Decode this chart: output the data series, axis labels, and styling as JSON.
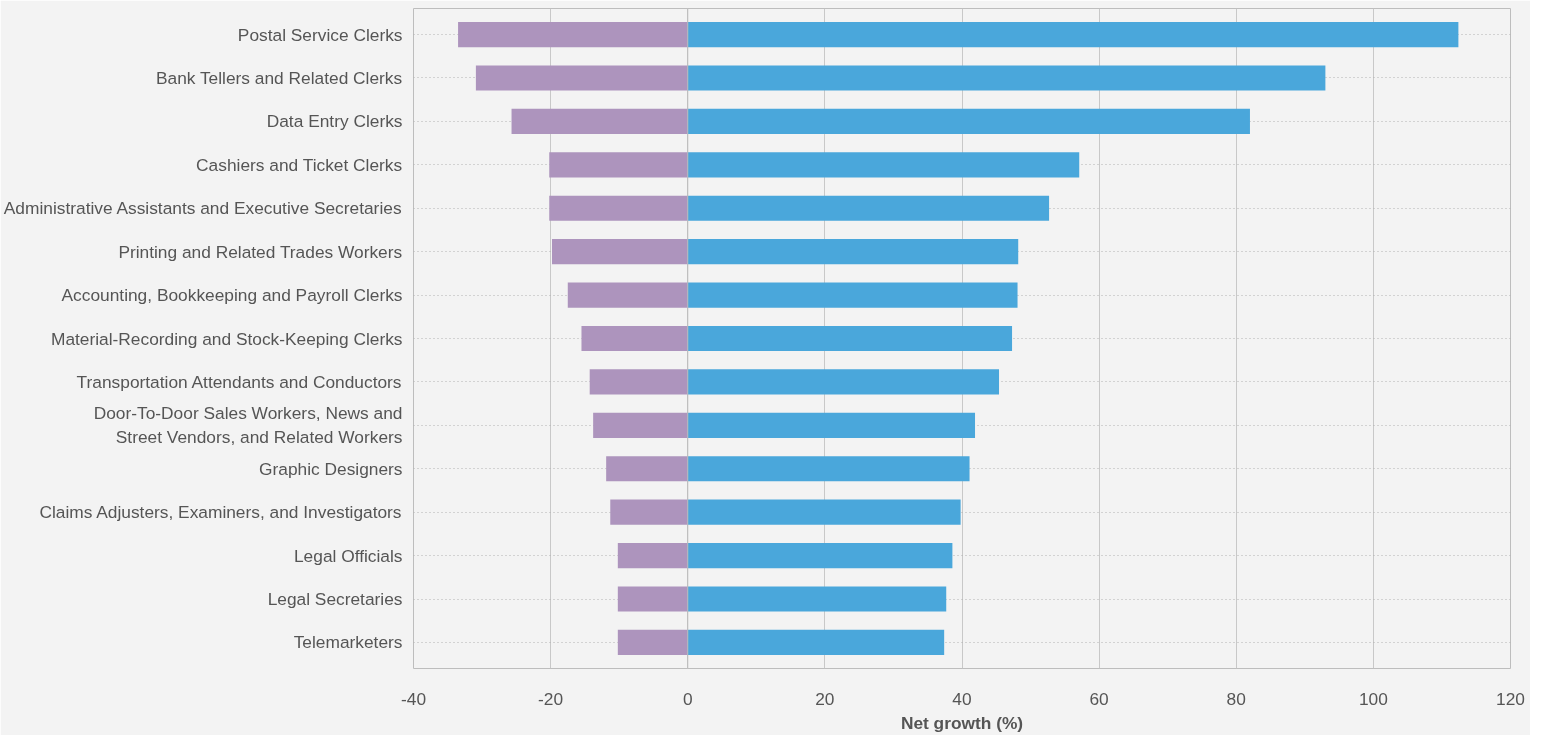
{
  "chart_data": {
    "type": "bar",
    "orientation": "horizontal",
    "xlabel": "Net growth (%)",
    "categories": [
      "Postal Service Clerks",
      "Bank Tellers and Related Clerks",
      "Data Entry Clerks",
      "Cashiers and Ticket Clerks",
      "Administrative Assistants and Executive Secretaries",
      "Printing and Related Trades Workers",
      "Accounting, Bookkeeping and Payroll Clerks",
      "Material-Recording and Stock-Keeping Clerks",
      "Transportation Attendants and Conductors",
      "Door-To-Door Sales Workers, News and Street Vendors, and Related Workers",
      "Graphic Designers",
      "Claims Adjusters, Examiners, and Investigators",
      "Legal Officials",
      "Legal Secretaries",
      "Telemarketers"
    ],
    "series": [
      {
        "color": "#ad94bd",
        "values": [
          -33.5,
          -30.9,
          -25.7,
          -20.2,
          -20.2,
          -19.8,
          -17.5,
          -15.5,
          -14.3,
          -13.8,
          -11.9,
          -11.3,
          -10.2,
          -10.2,
          -10.2
        ]
      },
      {
        "color": "#4aa7db",
        "values": [
          112.4,
          93.0,
          82.0,
          57.1,
          52.7,
          48.2,
          48.1,
          47.3,
          45.4,
          41.9,
          41.1,
          39.8,
          38.6,
          37.7,
          37.4
        ]
      }
    ],
    "xlim": [
      -40,
      120
    ],
    "xticks": [
      -40,
      -20,
      0,
      20,
      40,
      60,
      80,
      100,
      120
    ],
    "grid": true,
    "stacked": true
  }
}
